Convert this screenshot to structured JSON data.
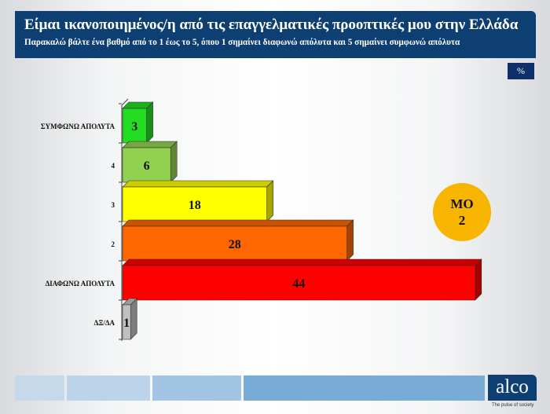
{
  "header": {
    "title": "Είμαι ικανοποιημένος/η από τις επαγγελματικές προοπτικές μου στην Ελλάδα",
    "subtitle": "Παρακαλώ βάλτε ένα βαθμό από το 1 έως το 5, όπου 1 σημαίνει διαφωνώ απόλυτα και 5 σημαίνει συμφωνώ απόλυτα"
  },
  "unit_badge": "%",
  "mean_badge": {
    "label": "ΜΟ",
    "value": "2",
    "color": "#f7b500"
  },
  "logo": {
    "text": "alco",
    "tagline": "The pulse of society"
  },
  "chart_data": {
    "type": "bar",
    "orientation": "horizontal",
    "style": "3d",
    "categories": [
      "ΣΥΜΦΩΝΩ ΑΠΟΛΥΤΑ",
      "4",
      "3",
      "2",
      "ΔΙΑΦΩΝΩ ΑΠΟΛΥΤΑ",
      "ΔΞ/ΔΑ"
    ],
    "values": [
      3,
      6,
      18,
      28,
      44,
      1
    ],
    "colors": [
      "#22dd22",
      "#92d050",
      "#ffff00",
      "#ff6600",
      "#ff0000",
      "#c0c0c0"
    ],
    "data_labels": [
      "3",
      "6",
      "18",
      "28",
      "44",
      "1"
    ],
    "grid": false
  }
}
